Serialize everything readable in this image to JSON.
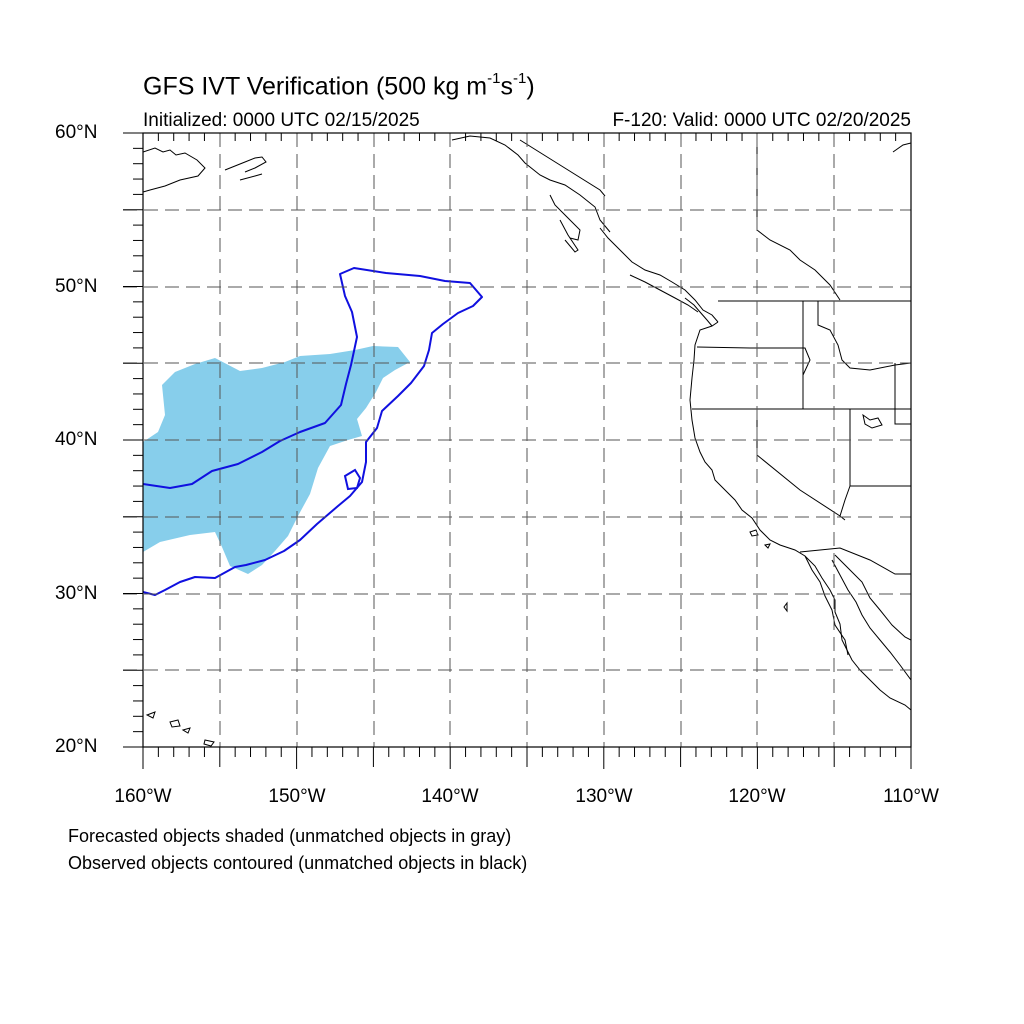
{
  "title": {
    "main_prefix": "GFS IVT Verification (500 kg m",
    "exp1": "-1",
    "middle": "s",
    "exp2": "-1",
    "suffix": ")"
  },
  "initialized": "Initialized: 0000 UTC 02/15/2025",
  "valid": "F-120: Valid: 0000 UTC 02/20/2025",
  "lat_labels": [
    "60°N",
    "50°N",
    "40°N",
    "30°N",
    "20°N"
  ],
  "lon_labels": [
    "160°W",
    "150°W",
    "140°W",
    "130°W",
    "120°W",
    "110°W"
  ],
  "notes": [
    "Forecasted objects shaded (unmatched objects in gray)",
    "Observed objects contoured (unmatched objects in black)"
  ],
  "colors": {
    "forecast_fill": "#87ceeb",
    "observed_contour": "#1010e0",
    "coastline": "#000000",
    "grid": "#555555"
  },
  "map_extent": {
    "lon": [
      -160,
      -110
    ],
    "lat": [
      20,
      60
    ]
  }
}
